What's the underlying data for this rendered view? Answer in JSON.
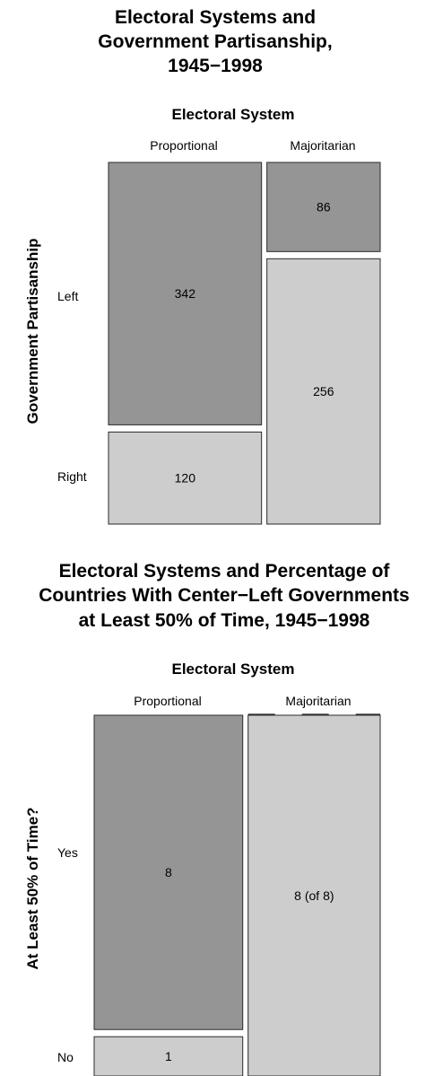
{
  "chart_data": [
    {
      "type": "mosaic",
      "title_lines": [
        "Electoral Systems and",
        "Government Partisanship,",
        "1945−1998"
      ],
      "column_variable": "Electoral System",
      "row_variable": "Government Partisanship",
      "columns": [
        "Proportional",
        "Majoritarian"
      ],
      "rows": [
        "Left",
        "Right"
      ],
      "counts": [
        [
          342,
          86
        ],
        [
          120,
          256
        ]
      ],
      "cell_labels": [
        [
          "342",
          "86"
        ],
        [
          "120",
          "256"
        ]
      ]
    },
    {
      "type": "mosaic",
      "title_lines": [
        "Electoral Systems and Percentage of",
        "Countries With Center−Left Governments",
        "at Least 50% of Time, 1945−1998"
      ],
      "column_variable": "Electoral System",
      "row_variable": "At Least 50% of Time?",
      "columns": [
        "Proportional",
        "Majoritarian"
      ],
      "rows": [
        "Yes",
        "No"
      ],
      "counts": [
        [
          8,
          0
        ],
        [
          1,
          8
        ]
      ],
      "cell_labels": [
        [
          "8",
          ""
        ],
        [
          "1",
          "8 (of 8)"
        ]
      ]
    }
  ],
  "colors": {
    "dark": "#959595",
    "light": "#cdcdcd",
    "stroke": "#2a2a2a"
  }
}
